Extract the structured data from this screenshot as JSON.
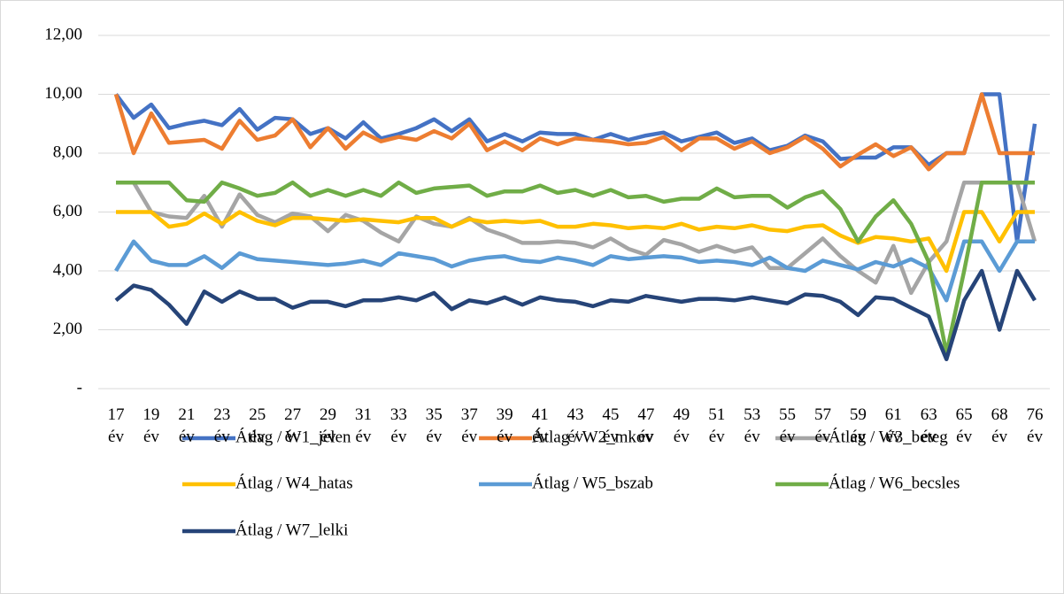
{
  "chart_data": {
    "type": "line",
    "categories": [
      "17 év",
      null,
      "19 év",
      null,
      "21 év",
      null,
      "23 év",
      null,
      "25 év",
      null,
      "27 év",
      null,
      "29 év",
      null,
      "31 év",
      null,
      "33 év",
      null,
      "35 év",
      null,
      "37 év",
      null,
      "39 év",
      null,
      "41 év",
      null,
      "43 év",
      null,
      "45 év",
      null,
      "47 év",
      null,
      "49 év",
      null,
      "51 év",
      null,
      "53 év",
      null,
      "55 év",
      null,
      "57 év",
      null,
      "59 év",
      null,
      "61 év",
      null,
      "63 év",
      null,
      "65 év",
      null,
      "68 év",
      null,
      "76 év"
    ],
    "series": [
      {
        "name": "Átlag / W1_jelen",
        "color": "#4472c4",
        "values": [
          10,
          9.2,
          9.65,
          8.85,
          9.0,
          9.1,
          8.95,
          9.5,
          8.8,
          9.2,
          9.15,
          8.65,
          8.85,
          8.5,
          9.05,
          8.5,
          8.65,
          8.85,
          9.15,
          8.75,
          9.15,
          8.4,
          8.65,
          8.4,
          8.7,
          8.65,
          8.65,
          8.45,
          8.65,
          8.45,
          8.6,
          8.7,
          8.4,
          8.55,
          8.7,
          8.35,
          8.5,
          8.1,
          8.25,
          8.6,
          8.4,
          7.8,
          7.85,
          7.85,
          8.2,
          8.2,
          7.6,
          8,
          8,
          10,
          10,
          5,
          9
        ]
      },
      {
        "name": "Átlag / W2_mkov",
        "color": "#ed7d31",
        "values": [
          10,
          8.0,
          9.35,
          8.35,
          8.4,
          8.45,
          8.15,
          9.1,
          8.45,
          8.6,
          9.15,
          8.2,
          8.85,
          8.15,
          8.7,
          8.4,
          8.55,
          8.45,
          8.75,
          8.5,
          9.0,
          8.1,
          8.4,
          8.1,
          8.5,
          8.3,
          8.5,
          8.45,
          8.4,
          8.3,
          8.35,
          8.55,
          8.1,
          8.5,
          8.5,
          8.15,
          8.4,
          8.0,
          8.2,
          8.55,
          8.15,
          7.55,
          7.95,
          8.3,
          7.9,
          8.2,
          7.45,
          8,
          8,
          10,
          8,
          8,
          8
        ]
      },
      {
        "name": "Átlag / W3_beteg",
        "color": "#a5a5a5",
        "values": [
          7,
          7,
          6.0,
          5.85,
          5.8,
          6.55,
          5.5,
          6.6,
          5.9,
          5.65,
          5.95,
          5.85,
          5.35,
          5.9,
          5.7,
          5.3,
          5.0,
          5.85,
          5.6,
          5.5,
          5.8,
          5.4,
          5.2,
          4.95,
          4.95,
          5.0,
          4.95,
          4.8,
          5.1,
          4.75,
          4.55,
          5.05,
          4.9,
          4.65,
          4.85,
          4.65,
          4.8,
          4.1,
          4.1,
          4.6,
          5.1,
          4.5,
          4.0,
          3.6,
          4.85,
          3.25,
          4.3,
          5,
          7,
          7,
          7,
          7,
          5
        ]
      },
      {
        "name": "Átlag / W4_hatas",
        "color": "#ffc000",
        "values": [
          6,
          6,
          6,
          5.5,
          5.6,
          5.95,
          5.6,
          6.0,
          5.7,
          5.55,
          5.8,
          5.8,
          5.75,
          5.7,
          5.75,
          5.7,
          5.65,
          5.8,
          5.8,
          5.5,
          5.75,
          5.65,
          5.7,
          5.65,
          5.7,
          5.5,
          5.5,
          5.6,
          5.55,
          5.45,
          5.5,
          5.45,
          5.6,
          5.4,
          5.5,
          5.45,
          5.55,
          5.4,
          5.35,
          5.5,
          5.55,
          5.2,
          4.95,
          5.15,
          5.1,
          5.0,
          5.1,
          4,
          6,
          6,
          5,
          6,
          6
        ]
      },
      {
        "name": "Átlag / W5_bszab",
        "color": "#5b9bd5",
        "values": [
          4,
          5,
          4.35,
          4.2,
          4.2,
          4.5,
          4.1,
          4.6,
          4.4,
          4.35,
          4.3,
          4.25,
          4.2,
          4.25,
          4.35,
          4.2,
          4.6,
          4.5,
          4.4,
          4.15,
          4.35,
          4.45,
          4.5,
          4.35,
          4.3,
          4.45,
          4.35,
          4.2,
          4.5,
          4.4,
          4.45,
          4.5,
          4.45,
          4.3,
          4.35,
          4.3,
          4.2,
          4.45,
          4.1,
          4.0,
          4.35,
          4.2,
          4.05,
          4.3,
          4.15,
          4.4,
          4.1,
          3,
          5,
          5,
          4,
          5,
          5
        ]
      },
      {
        "name": "Átlag / W6_becsles",
        "color": "#70ad47",
        "values": [
          7,
          7,
          7,
          7,
          6.4,
          6.35,
          7.0,
          6.8,
          6.55,
          6.65,
          7.0,
          6.55,
          6.75,
          6.55,
          6.75,
          6.55,
          7.0,
          6.65,
          6.8,
          6.85,
          6.9,
          6.55,
          6.7,
          6.7,
          6.9,
          6.65,
          6.75,
          6.55,
          6.75,
          6.5,
          6.55,
          6.35,
          6.45,
          6.45,
          6.8,
          6.5,
          6.55,
          6.55,
          6.15,
          6.5,
          6.7,
          6.1,
          5.0,
          5.85,
          6.4,
          5.6,
          4.3,
          1.2,
          4,
          7,
          7,
          7,
          7
        ]
      },
      {
        "name": "Átlag / W7_lelki",
        "color": "#264478",
        "values": [
          3,
          3.5,
          3.35,
          2.85,
          2.2,
          3.3,
          2.95,
          3.3,
          3.05,
          3.05,
          2.75,
          2.95,
          2.95,
          2.8,
          3.0,
          3.0,
          3.1,
          3.0,
          3.25,
          2.7,
          3.0,
          2.9,
          3.1,
          2.85,
          3.1,
          3.0,
          2.95,
          2.8,
          3.0,
          2.95,
          3.15,
          3.05,
          2.95,
          3.05,
          3.05,
          3.0,
          3.1,
          3.0,
          2.9,
          3.2,
          3.15,
          2.95,
          2.5,
          3.1,
          3.05,
          2.75,
          2.45,
          1,
          3,
          4,
          2,
          4,
          3
        ]
      }
    ],
    "ylim": [
      0,
      12
    ],
    "yticks": [
      {
        "value": 0,
        "label": "-"
      },
      {
        "value": 2,
        "label": "2,00"
      },
      {
        "value": 4,
        "label": "4,00"
      },
      {
        "value": 6,
        "label": "6,00"
      },
      {
        "value": 8,
        "label": "8,00"
      },
      {
        "value": 10,
        "label": "10,00"
      },
      {
        "value": 12,
        "label": "12,00"
      }
    ],
    "grid": true
  }
}
